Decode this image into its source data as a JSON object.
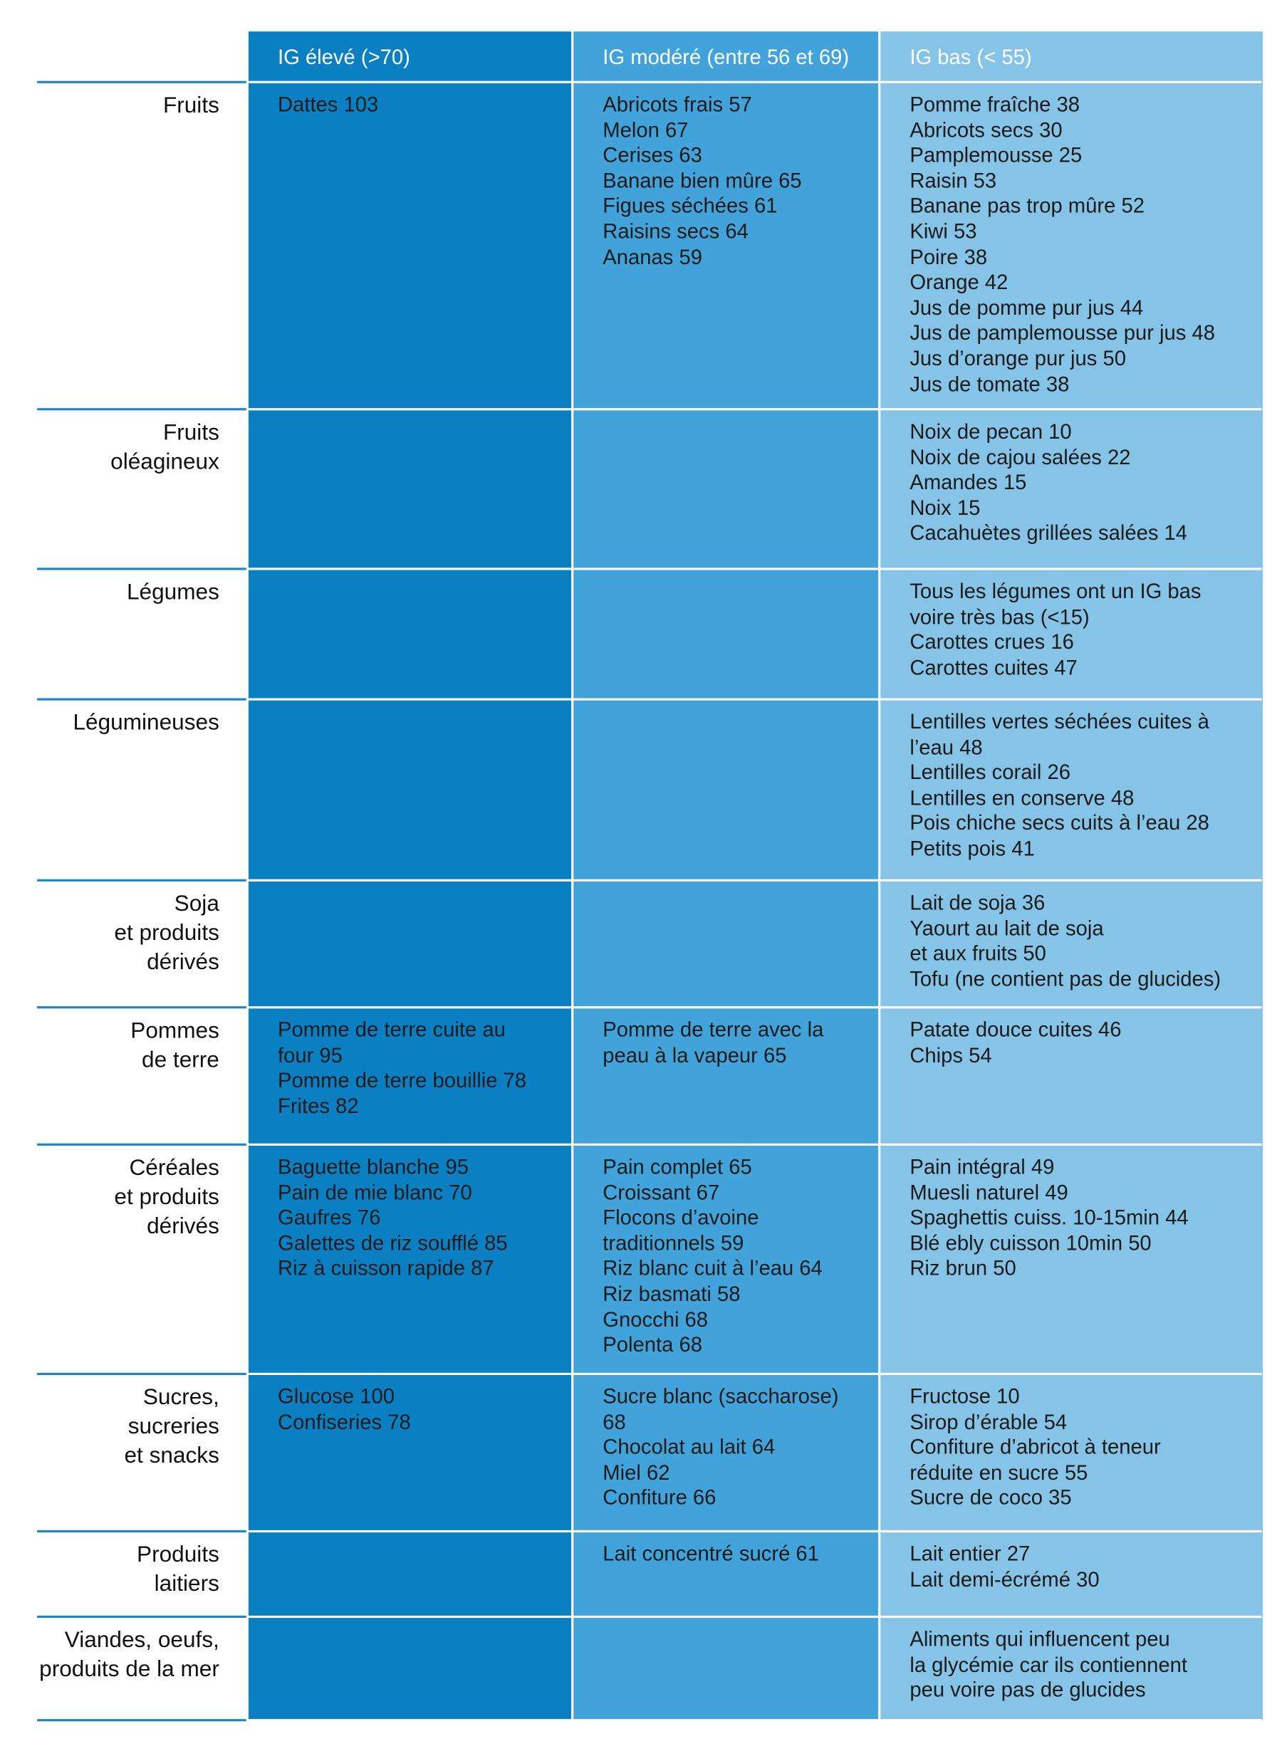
{
  "table": {
    "headers": [
      "IG élevé (>70)",
      "IG modéré (entre 56 et 69)",
      "IG bas (< 55)"
    ],
    "rows": [
      {
        "label": [
          "Fruits"
        ],
        "cells": [
          [
            "Dattes 103"
          ],
          [
            "Abricots frais 57",
            "Melon 67",
            "Cerises 63",
            "Banane bien mûre 65",
            "Figues séchées 61",
            "Raisins secs 64",
            "Ananas 59"
          ],
          [
            "Pomme fraîche 38",
            "Abricots secs 30",
            "Pamplemousse 25",
            "Raisin 53",
            "Banane pas trop mûre 52",
            "Kiwi 53",
            "Poire 38",
            "Orange 42",
            "Jus de pomme pur jus 44",
            "Jus de pamplemousse pur jus 48",
            "Jus d’orange pur jus 50",
            "Jus de tomate 38"
          ]
        ]
      },
      {
        "label": [
          "Fruits",
          "oléagineux"
        ],
        "cells": [
          [],
          [],
          [
            "Noix de pecan 10",
            "Noix de cajou salées 22",
            "Amandes 15",
            "Noix 15",
            "Cacahuètes grillées salées 14"
          ]
        ]
      },
      {
        "label": [
          "Légumes"
        ],
        "cells": [
          [],
          [],
          [
            "Tous les légumes ont un IG bas",
            "voire très bas (<15)",
            "Carottes crues 16",
            "Carottes cuites 47"
          ]
        ]
      },
      {
        "label": [
          "Légumineuses"
        ],
        "cells": [
          [],
          [],
          [
            "Lentilles vertes séchées cuites à",
            "l’eau 48",
            "Lentilles corail 26",
            "Lentilles en conserve 48",
            "Pois chiche secs cuits à l’eau 28",
            "Petits pois 41"
          ]
        ]
      },
      {
        "label": [
          "Soja",
          "et produits",
          "dérivés"
        ],
        "cells": [
          [],
          [],
          [
            "Lait de soja 36",
            "Yaourt au lait de soja",
            "et aux fruits 50",
            "Tofu (ne contient pas de glucides)"
          ]
        ]
      },
      {
        "label": [
          "Pommes",
          "de terre"
        ],
        "cells": [
          [
            "Pomme de terre cuite au",
            "four 95",
            "Pomme de terre bouillie 78",
            "Frites 82"
          ],
          [
            "Pomme de terre avec la",
            "peau à la vapeur 65"
          ],
          [
            "Patate douce cuites 46",
            "Chips 54"
          ]
        ]
      },
      {
        "label": [
          "Céréales",
          "et produits",
          "dérivés"
        ],
        "cells": [
          [
            "Baguette blanche 95",
            "Pain de mie blanc 70",
            "Gaufres 76",
            "Galettes de riz soufflé 85",
            "Riz à cuisson rapide 87"
          ],
          [
            "Pain complet 65",
            "Croissant 67",
            "Flocons d’avoine",
            "traditionnels 59",
            "Riz blanc cuit à l’eau 64",
            "Riz basmati 58",
            "Gnocchi 68",
            "Polenta 68"
          ],
          [
            "Pain intégral 49",
            "Muesli naturel 49",
            "Spaghettis cuiss. 10-15min 44",
            "Blé ebly cuisson 10min 50",
            "Riz brun 50"
          ]
        ]
      },
      {
        "label": [
          "Sucres,",
          "sucreries",
          "et  snacks"
        ],
        "cells": [
          [
            "Glucose 100",
            "Confiseries 78"
          ],
          [
            "Sucre blanc (saccharose)",
            "68",
            "Chocolat au lait 64",
            "Miel 62",
            "Confiture 66"
          ],
          [
            "Fructose 10",
            "Sirop d’érable 54",
            "Confiture d’abricot à teneur",
            "réduite en sucre 55",
            "Sucre de coco 35"
          ]
        ]
      },
      {
        "label": [
          "Produits",
          "laitiers"
        ],
        "cells": [
          [],
          [
            "Lait concentré sucré 61"
          ],
          [
            "Lait entier 27",
            "Lait demi-écrémé 30"
          ]
        ]
      },
      {
        "label": [
          "Viandes, oeufs,",
          "produits de la mer"
        ],
        "cells": [
          [],
          [],
          [
            "Aliments qui influencent peu",
            "la glycémie car ils contiennent",
            "peu voire pas de glucides"
          ]
        ]
      }
    ]
  }
}
